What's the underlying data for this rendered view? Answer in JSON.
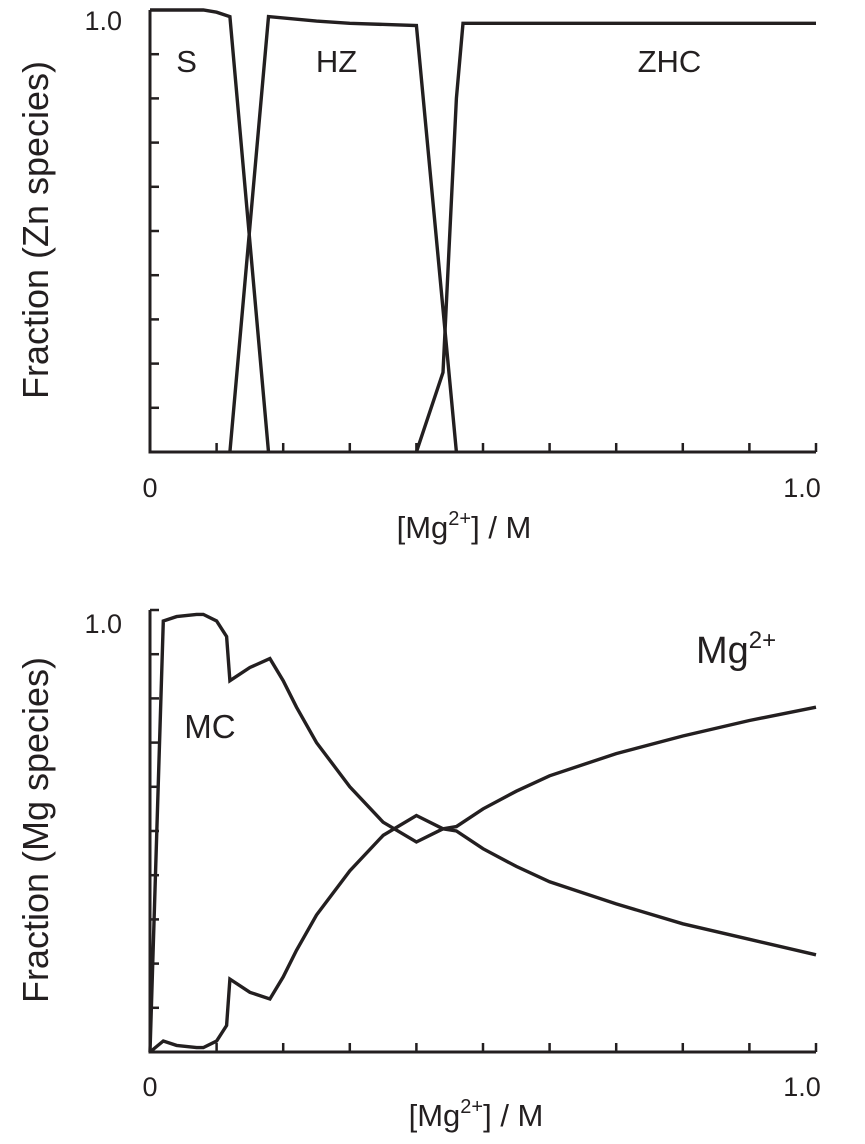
{
  "colors": {
    "ink": "#231f20",
    "background": "#ffffff"
  },
  "chart_data": [
    {
      "type": "line",
      "ylabel": "Fraction (Zn species)",
      "xlabel_parts": {
        "open": "[Mg",
        "sup": "2+",
        "close": "] / M"
      },
      "xlim": [
        0,
        1.0
      ],
      "ylim": [
        0,
        1.0
      ],
      "x_tick_labels": [
        "0",
        "1.0"
      ],
      "y_tick_labels": [
        "1.0"
      ],
      "minor_x_ticks": 10,
      "minor_y_ticks": 10,
      "grid": false,
      "region_labels": [
        {
          "text": "S",
          "x": 0.055,
          "y": 0.86
        },
        {
          "text": "HZ",
          "x": 0.28,
          "y": 0.86
        },
        {
          "text": "ZHC",
          "x": 0.78,
          "y": 0.86
        }
      ],
      "series": [
        {
          "values": [
            [
              0,
              1.0
            ],
            [
              0.08,
              1.0
            ],
            [
              0.1,
              0.995
            ],
            [
              0.12,
              0.985
            ],
            [
              0.178,
              0.0
            ]
          ]
        },
        {
          "values": [
            [
              0.12,
              0.0
            ],
            [
              0.178,
              0.985
            ],
            [
              0.25,
              0.975
            ],
            [
              0.3,
              0.97
            ],
            [
              0.4,
              0.965
            ],
            [
              0.46,
              0.0
            ]
          ]
        },
        {
          "values": [
            [
              0.4,
              0.0
            ],
            [
              0.44,
              0.18
            ],
            [
              0.46,
              0.8
            ],
            [
              0.47,
              0.97
            ],
            [
              1.0,
              0.97
            ]
          ]
        }
      ]
    },
    {
      "type": "line",
      "ylabel": "Fraction (Mg species)",
      "xlabel_parts": {
        "open": "[Mg",
        "sup": "2+",
        "close": "] / M"
      },
      "xlim": [
        0,
        1.0
      ],
      "ylim": [
        0,
        1.0
      ],
      "x_tick_labels": [
        "0",
        "1.0"
      ],
      "y_tick_labels": [
        "1.0"
      ],
      "minor_x_ticks": 10,
      "minor_y_ticks": 10,
      "grid": false,
      "series_labels": [
        {
          "text": "MC",
          "x": 0.09,
          "y": 0.71
        },
        {
          "text": "Mg",
          "sup": "2+",
          "x": 0.88,
          "y": 0.88
        }
      ],
      "series": [
        {
          "name": "MC",
          "values": [
            [
              0,
              0.0
            ],
            [
              0.02,
              0.975
            ],
            [
              0.04,
              0.985
            ],
            [
              0.07,
              0.99
            ],
            [
              0.08,
              0.99
            ],
            [
              0.1,
              0.975
            ],
            [
              0.115,
              0.94
            ],
            [
              0.12,
              0.84
            ],
            [
              0.15,
              0.87
            ],
            [
              0.18,
              0.89
            ],
            [
              0.2,
              0.84
            ],
            [
              0.22,
              0.78
            ],
            [
              0.25,
              0.7
            ],
            [
              0.28,
              0.64
            ],
            [
              0.3,
              0.6
            ],
            [
              0.35,
              0.52
            ],
            [
              0.4,
              0.475
            ],
            [
              0.44,
              0.505
            ],
            [
              0.46,
              0.5
            ],
            [
              0.5,
              0.46
            ],
            [
              0.55,
              0.42
            ],
            [
              0.6,
              0.385
            ],
            [
              0.7,
              0.335
            ],
            [
              0.8,
              0.29
            ],
            [
              0.9,
              0.255
            ],
            [
              1.0,
              0.22
            ]
          ]
        },
        {
          "name": "Mg2+",
          "values": [
            [
              0,
              0.0
            ],
            [
              0.02,
              0.025
            ],
            [
              0.04,
              0.015
            ],
            [
              0.07,
              0.01
            ],
            [
              0.08,
              0.01
            ],
            [
              0.1,
              0.025
            ],
            [
              0.115,
              0.06
            ],
            [
              0.12,
              0.165
            ],
            [
              0.15,
              0.135
            ],
            [
              0.18,
              0.12
            ],
            [
              0.2,
              0.17
            ],
            [
              0.22,
              0.23
            ],
            [
              0.25,
              0.31
            ],
            [
              0.28,
              0.37
            ],
            [
              0.3,
              0.41
            ],
            [
              0.35,
              0.49
            ],
            [
              0.4,
              0.535
            ],
            [
              0.44,
              0.505
            ],
            [
              0.46,
              0.51
            ],
            [
              0.5,
              0.55
            ],
            [
              0.55,
              0.59
            ],
            [
              0.6,
              0.625
            ],
            [
              0.7,
              0.675
            ],
            [
              0.8,
              0.715
            ],
            [
              0.9,
              0.75
            ],
            [
              1.0,
              0.78
            ]
          ]
        }
      ]
    }
  ]
}
